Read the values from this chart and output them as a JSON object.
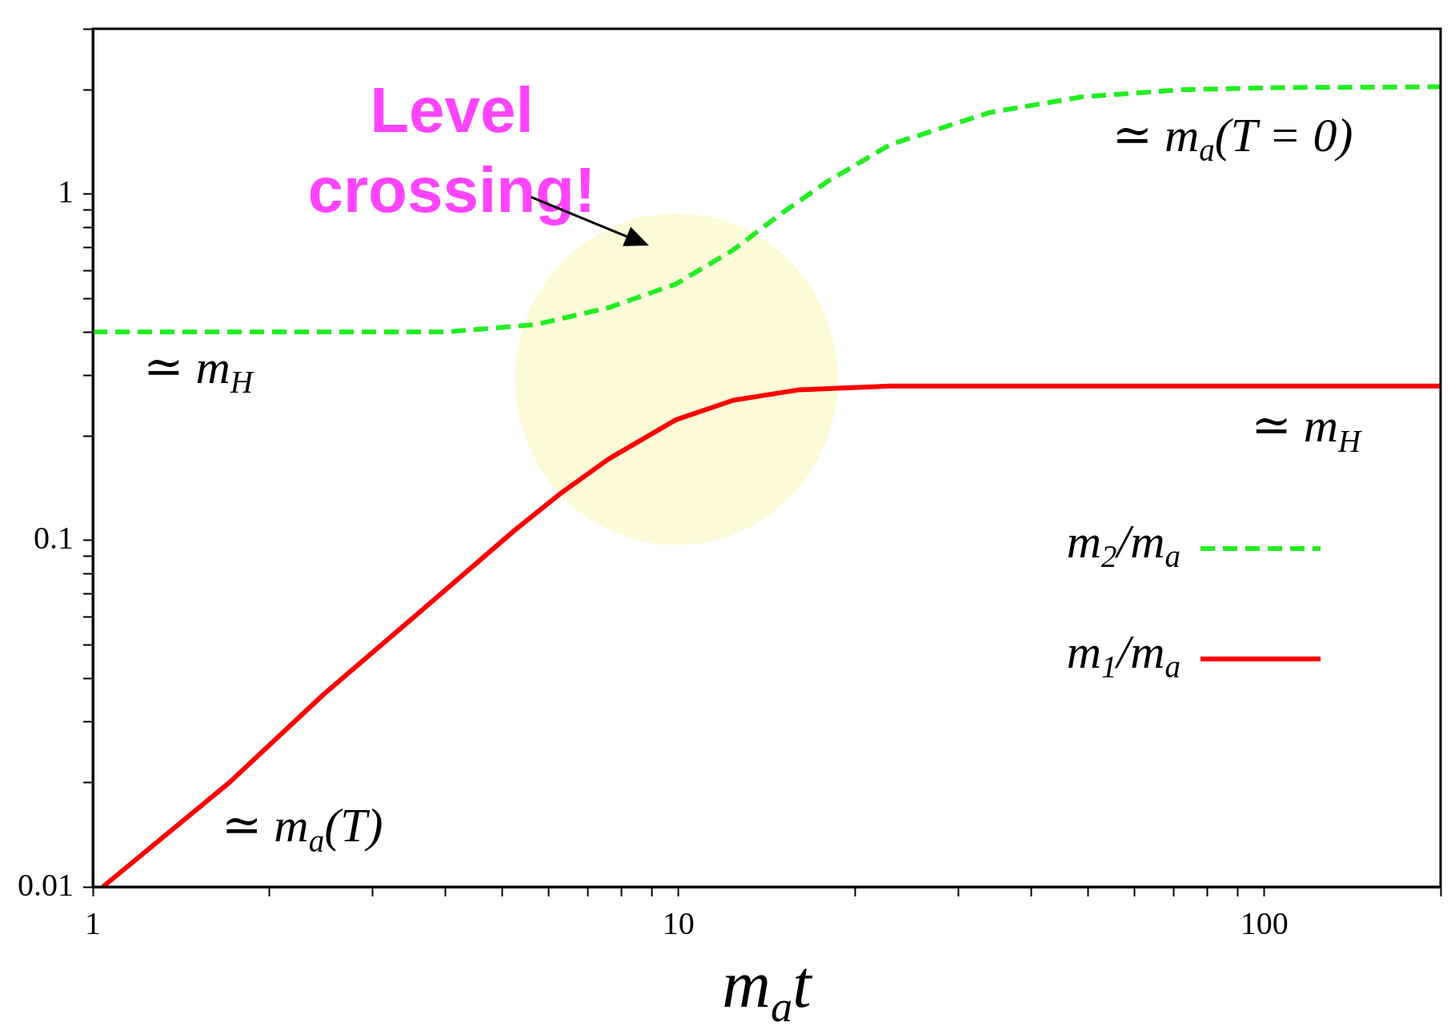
{
  "chart_data": {
    "type": "line",
    "xlabel": "m$_{a}$t",
    "log": "xy",
    "grid": false,
    "legend": "bottom right",
    "xlim": [
      1,
      200
    ],
    "xticks": [
      1,
      {
        "value": 2,
        "label": null
      },
      {
        "value": 3,
        "label": null
      },
      {
        "value": 4,
        "label": null
      },
      {
        "value": 5,
        "label": null
      },
      {
        "value": 6,
        "label": null
      },
      {
        "value": 7,
        "label": null
      },
      {
        "value": 8,
        "label": null
      },
      {
        "value": 9,
        "label": null
      },
      10,
      {
        "value": 20,
        "label": null
      },
      {
        "value": 30,
        "label": null
      },
      {
        "value": 40,
        "label": null
      },
      {
        "value": 50,
        "label": null
      },
      {
        "value": 60,
        "label": null
      },
      {
        "value": 70,
        "label": null
      },
      {
        "value": 80,
        "label": null
      },
      {
        "value": 90,
        "label": null
      },
      100,
      {
        "value": 200,
        "label": null
      }
    ],
    "ylim": [
      0.01,
      3
    ],
    "yticks": [
      0.01,
      {
        "value": 0.02,
        "label": null
      },
      {
        "value": 0.03,
        "label": null
      },
      {
        "value": 0.04,
        "label": null
      },
      {
        "value": 0.05,
        "label": null
      },
      {
        "value": 0.06,
        "label": null
      },
      {
        "value": 0.07,
        "label": null
      },
      {
        "value": 0.08,
        "label": null
      },
      {
        "value": 0.09,
        "label": null
      },
      0.1,
      {
        "value": 0.2,
        "label": null
      },
      {
        "value": 0.3,
        "label": null
      },
      {
        "value": 0.4,
        "label": null
      },
      {
        "value": 0.5,
        "label": null
      },
      {
        "value": 0.6,
        "label": null
      },
      {
        "value": 0.7,
        "label": null
      },
      {
        "value": 0.8,
        "label": null
      },
      {
        "value": 0.9,
        "label": null
      },
      1,
      {
        "value": 2,
        "label": null
      },
      {
        "value": 3,
        "label": null
      }
    ],
    "series": [
      {
        "name": "m$_{2}$/m$_{a}$",
        "color": "#22ee22",
        "line_style": "dashed",
        "x": [
          1,
          2,
          3,
          4,
          5.7,
          7.6,
          9.9,
          12.4,
          15,
          18,
          23,
          34,
          49,
          72,
          105,
          200
        ],
        "values": [
          0.4,
          0.4,
          0.4,
          0.4,
          0.42,
          0.47,
          0.55,
          0.69,
          0.88,
          1.09,
          1.39,
          1.72,
          1.91,
          2.0,
          2.03,
          2.04
        ]
      },
      {
        "name": "m$_{1}$/m$_{a}$",
        "color": "#ff0000",
        "line_style": "solid",
        "x": [
          1.04,
          1.71,
          2.48,
          3.61,
          5.25,
          6.3,
          7.6,
          9.9,
          12.4,
          16,
          23,
          50,
          200
        ],
        "values": [
          0.01,
          0.02,
          0.036,
          0.062,
          0.107,
          0.137,
          0.172,
          0.223,
          0.254,
          0.272,
          0.279,
          0.279,
          0.279
        ]
      }
    ],
    "annotations": [
      "Level crossing!",
      "≃ m$_{a}$(T = 0)",
      "≃ m$_{H}$",
      "≃ m$_{H}$",
      "≃ m$_{a}$(T)"
    ]
  }
}
